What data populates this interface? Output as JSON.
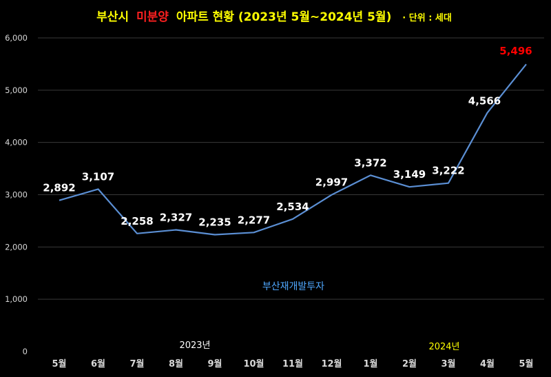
{
  "chart_data": {
    "type": "line",
    "title": {
      "part1": "부산시",
      "part2": "미분양",
      "part3": "아파트 현황 (2023년 5월~2024년 5월)",
      "unit": "· 단위 : 세대"
    },
    "categories": [
      "5월",
      "6월",
      "7월",
      "8월",
      "9월",
      "10월",
      "11월",
      "12월",
      "1월",
      "2월",
      "3월",
      "4월",
      "5월"
    ],
    "values": [
      2892,
      3107,
      2258,
      2327,
      2235,
      2277,
      2534,
      2997,
      3372,
      3149,
      3222,
      4566,
      5496
    ],
    "data_labels": [
      "2,892",
      "3,107",
      "2,258",
      "2,327",
      "2,235",
      "2,277",
      "2,534",
      "2,997",
      "3,372",
      "3,149",
      "3,222",
      "4,566",
      "5,496"
    ],
    "ylim": [
      0,
      6000
    ],
    "yticks": [
      0,
      1000,
      2000,
      3000,
      4000,
      5000,
      6000
    ],
    "ytick_labels": [
      "0",
      "1,000",
      "2,000",
      "3,000",
      "4,000",
      "5,000",
      "6,000"
    ],
    "grid": true,
    "year_labels": [
      "2023년",
      "2024년"
    ],
    "watermark": "부산재개발투자",
    "colors": {
      "background": "#000000",
      "line": "#5b8fd4",
      "grid": "#3a3a3a",
      "axis_text": "#d9d9d9",
      "label": "#ffffff",
      "highlight_label": "#ff0000",
      "title_main": "#ffff00",
      "title_highlight": "#ff2020",
      "year_2023": "#ffffff",
      "year_2024": "#ffff00",
      "watermark": "#4fa8ff"
    }
  }
}
